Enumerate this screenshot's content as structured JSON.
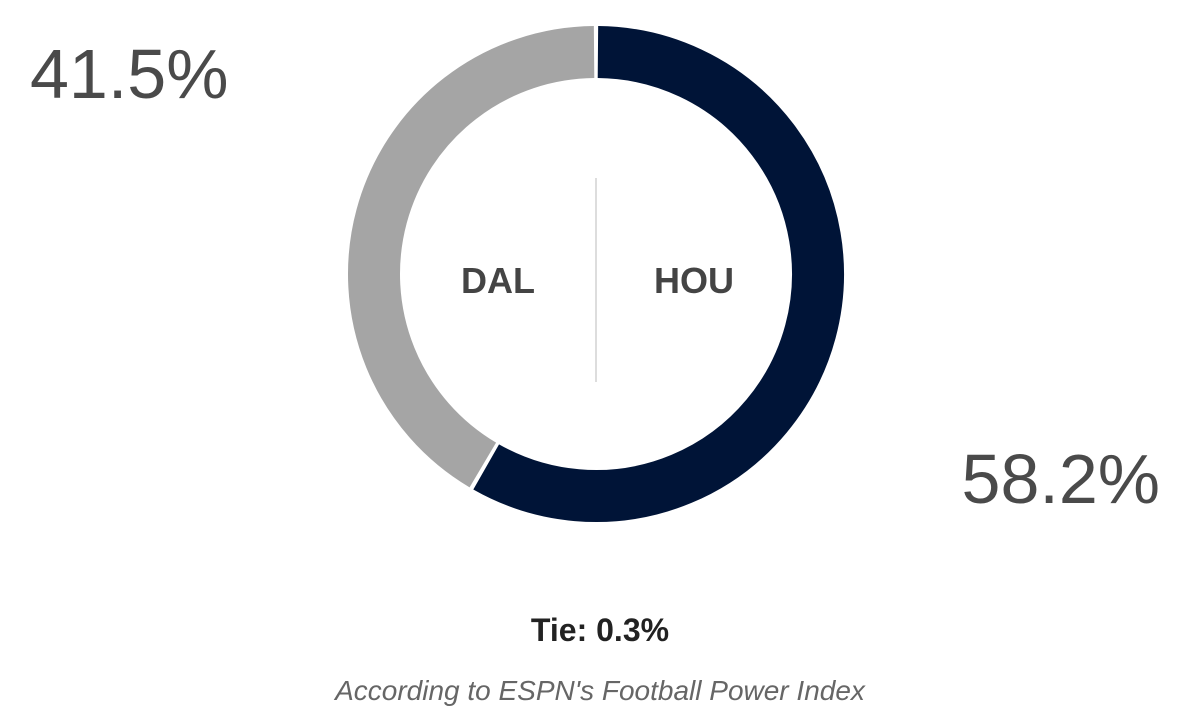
{
  "chart_data": {
    "type": "pie",
    "style": "donut",
    "slices": [
      {
        "team": "HOU",
        "value": 58.2,
        "label": "58.2%",
        "color": "#001437"
      },
      {
        "team": "DAL",
        "value": 41.5,
        "label": "41.5%",
        "color": "#a5a5a5"
      }
    ],
    "tie": {
      "value": 0.3,
      "text": "Tie: 0.3%"
    },
    "source_note": "According to ESPN's Football Power Index"
  }
}
